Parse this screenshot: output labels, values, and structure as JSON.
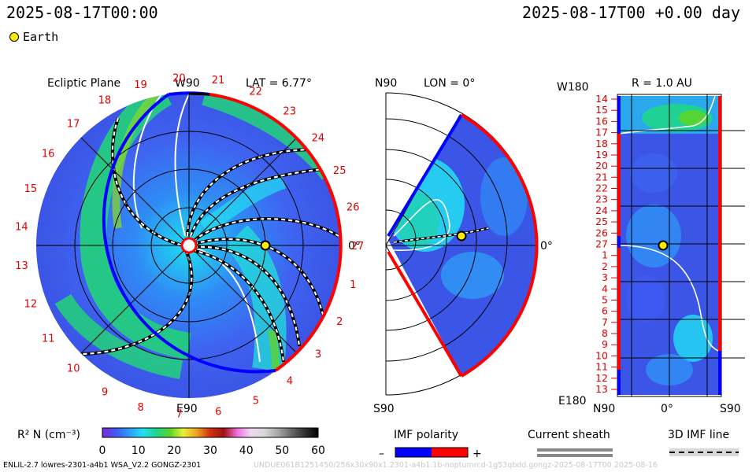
{
  "header": {
    "left_timestamp": "2025-08-17T00:00",
    "right_timestamp": "2025-08-17T00 +0.00 day",
    "earth_legend": "Earth"
  },
  "panels": {
    "ecliptic": {
      "title": "Ecliptic Plane",
      "top_label": "W90",
      "lat_label": "LAT = 6.77°",
      "right_label": "0°",
      "bottom_label": "E90"
    },
    "meridional": {
      "top_label": "N90",
      "lon_label": "LON = 0°",
      "right_label": "0°",
      "bottom_label": "S90"
    },
    "sphere": {
      "top_left_label": "W180",
      "title": "R = 1.0 AU",
      "bottom_left_label": "E180",
      "x_labels": [
        "N90",
        "0°",
        "S90"
      ]
    }
  },
  "ecliptic_ring_labels": [
    "1",
    "2",
    "3",
    "4",
    "5",
    "6",
    "7",
    "8",
    "9",
    "10",
    "11",
    "12",
    "13",
    "14",
    "15",
    "16",
    "17",
    "18",
    "19",
    "20",
    "21",
    "22",
    "23",
    "24",
    "25",
    "26",
    "27"
  ],
  "sphere_y_labels": [
    "14",
    "15",
    "16",
    "17",
    "18",
    "19",
    "20",
    "21",
    "22",
    "23",
    "24",
    "25",
    "26",
    "27",
    "1",
    "2",
    "3",
    "4",
    "5",
    "6",
    "7",
    "8",
    "9",
    "10",
    "11",
    "12",
    "13"
  ],
  "colorbar": {
    "label": "R² N (cm⁻³)",
    "ticks": [
      "0",
      "10",
      "20",
      "30",
      "40",
      "50",
      "60"
    ],
    "colors": [
      "#7a2ad8",
      "#3f5af2",
      "#2f9bf8",
      "#22e0f2",
      "#1fd58b",
      "#5ad42a",
      "#e8f03a",
      "#f0a020",
      "#d03010",
      "#a01010",
      "#f070e0",
      "#f0d8f0",
      "#d8d8d8",
      "#a8a8a8",
      "#6a6a6a",
      "#303030",
      "#000000"
    ]
  },
  "legends": {
    "imf_title": "IMF polarity",
    "imf_minus": "–",
    "imf_plus": "+",
    "imf_negative_color": "#0000ff",
    "imf_positive_color": "#ff0000",
    "sheath_title": "Current sheath",
    "imf3d_title": "3D IMF line"
  },
  "footer": {
    "left": "ENLIL-2.7 lowres-2301-a4b1 WSA_V2.2 GONGZ-2301",
    "right": "UNDUE061B1251450/256x30x90x1.2301-a4b1.1b-noptumrcd-1g53qbdd.gongz-2025-08-17T00   2025-08-16"
  }
}
